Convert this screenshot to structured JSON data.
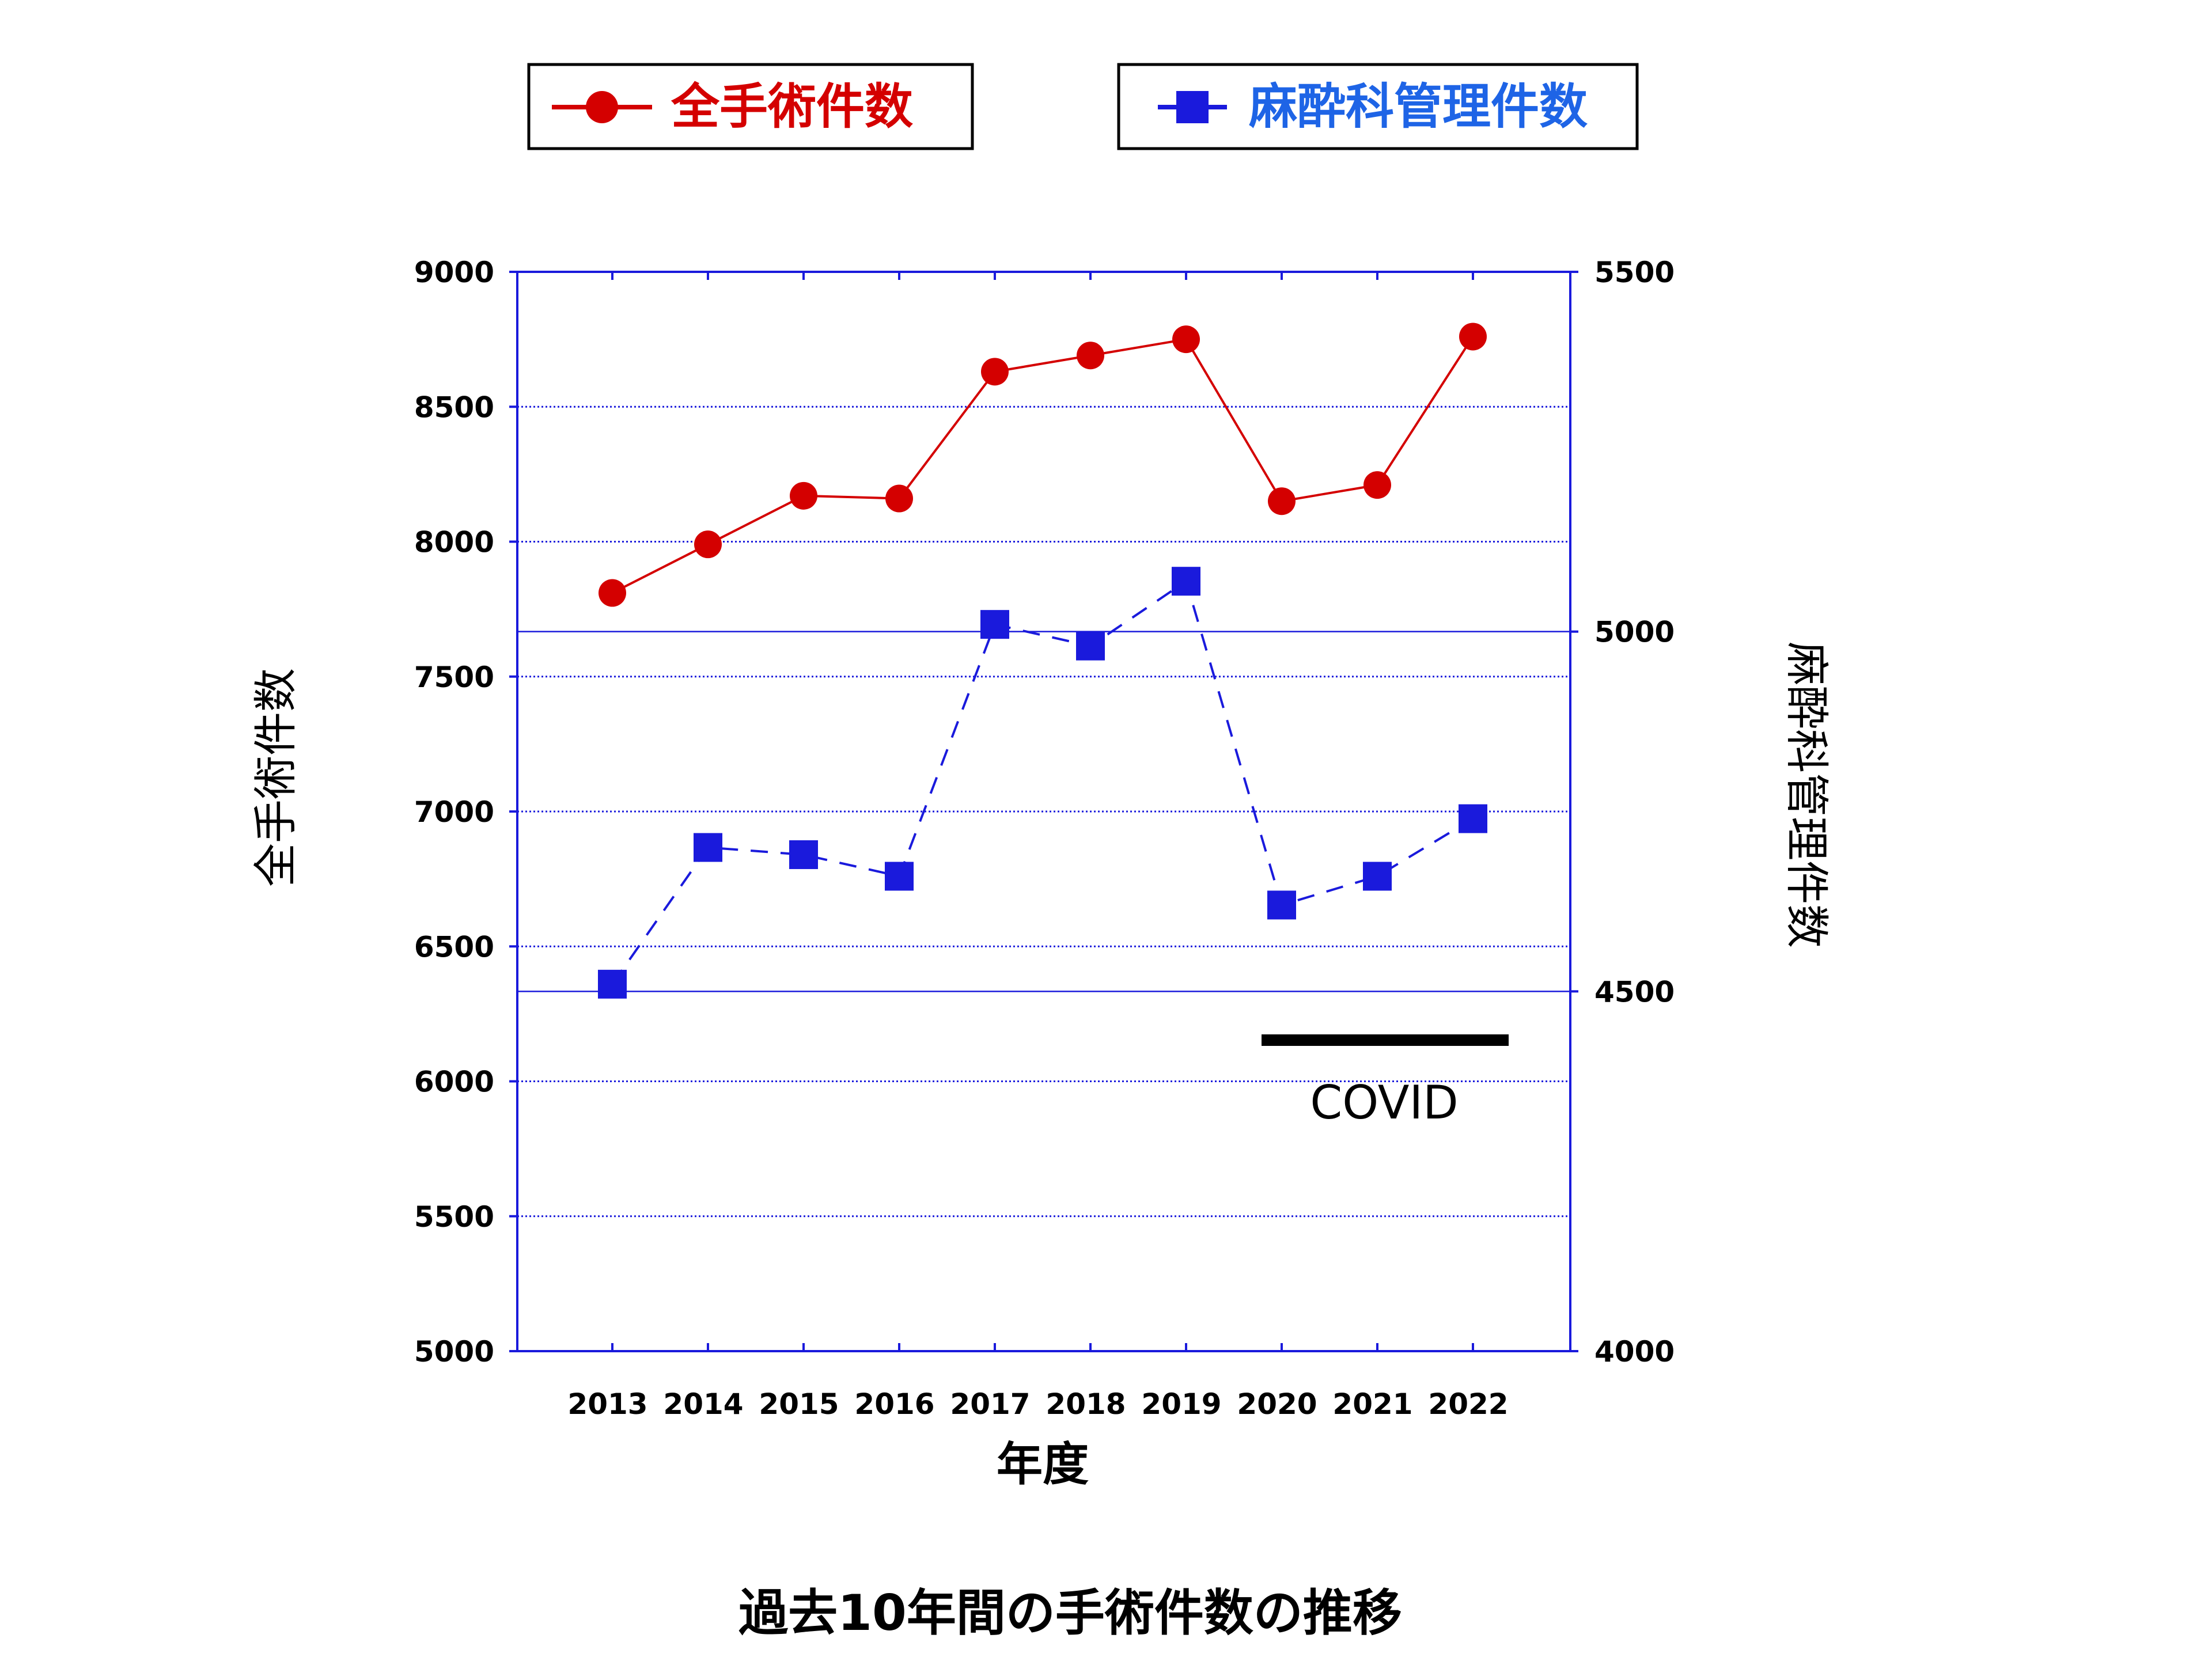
{
  "legend": {
    "total_label": "全手術件数",
    "anesthesia_label": "麻酔科管理件数"
  },
  "colors": {
    "total": "#d40000",
    "anesthesia": "#1a1adc",
    "axis": "#1a1adc",
    "grid": "#1a1adc",
    "covid_bar": "#000000",
    "text": "#000000"
  },
  "covid_label": "COVID",
  "chart_data": {
    "type": "line",
    "title": "過去10年間の手術件数の推移",
    "xlabel": "年度",
    "ylabel_left": "全手術件数",
    "ylabel_right": "麻酔科管理件数",
    "categories": [
      "2013",
      "2014",
      "2015",
      "2016",
      "2017",
      "2018",
      "2019",
      "2020",
      "2021",
      "2022"
    ],
    "ylim_left": [
      5000,
      9000
    ],
    "yticks_left": [
      5000,
      5500,
      6000,
      6500,
      7000,
      7500,
      8000,
      8500,
      9000
    ],
    "ylim_right": [
      4000,
      5500
    ],
    "yticks_right": [
      4000,
      4500,
      5000,
      5500
    ],
    "grid": true,
    "legend_position": "top",
    "series": [
      {
        "name": "全手術件数",
        "axis": "left",
        "marker": "circle",
        "line": "solid",
        "values": [
          7810,
          7990,
          8170,
          8160,
          8630,
          8690,
          8750,
          8150,
          8210,
          8760
        ]
      },
      {
        "name": "麻酔科管理件数",
        "axis": "right",
        "marker": "square",
        "line": "dashed",
        "values": [
          4510,
          4700,
          4690,
          4660,
          5010,
          4980,
          5070,
          4620,
          4660,
          4740
        ]
      }
    ],
    "covid_period": [
      "2020",
      "2022"
    ]
  }
}
